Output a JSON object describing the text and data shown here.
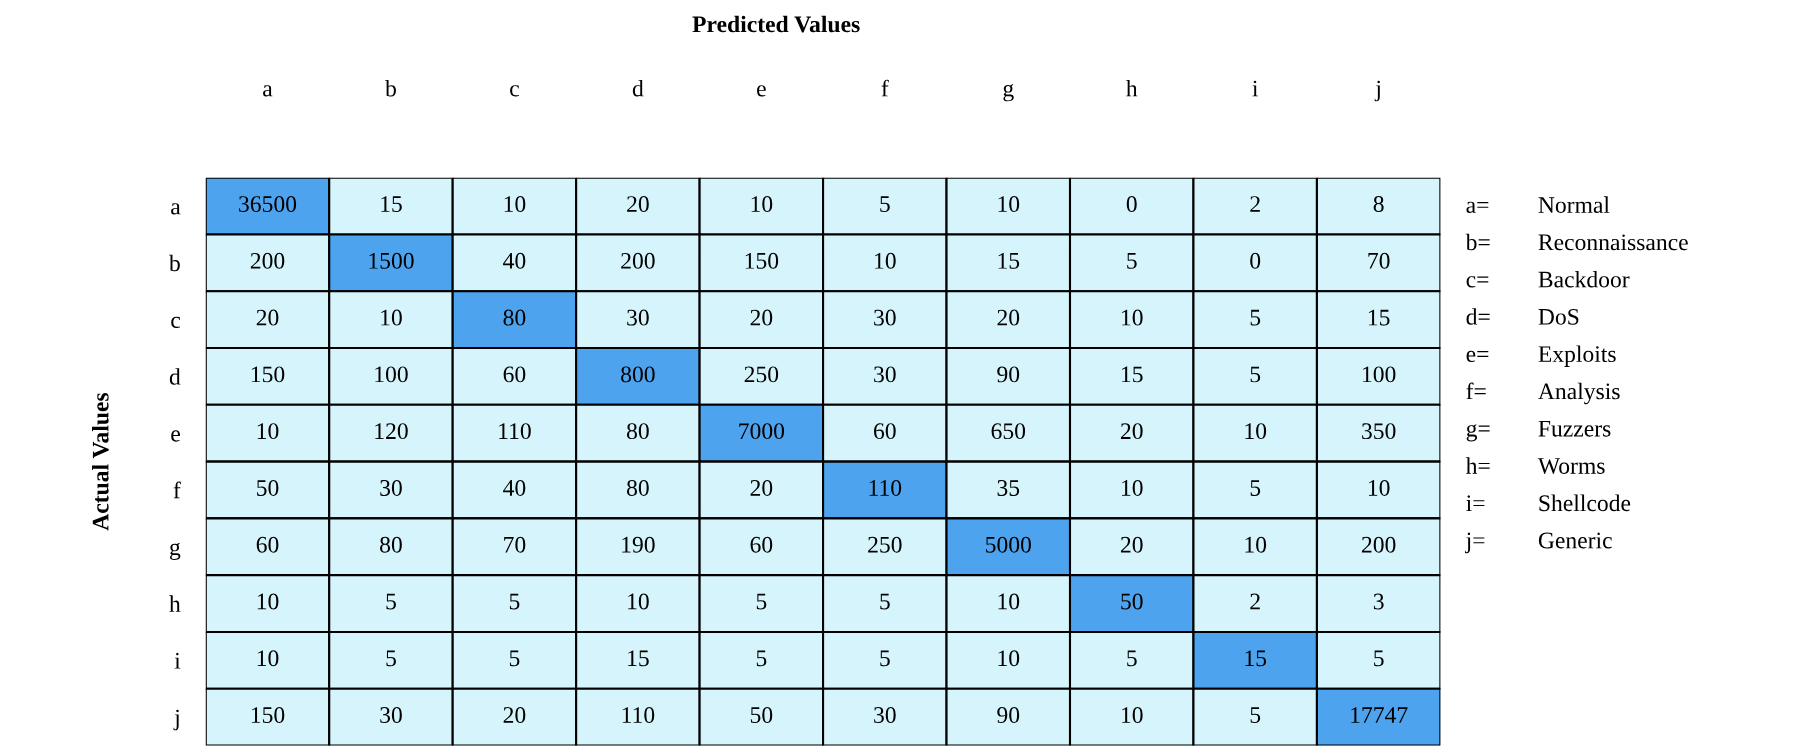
{
  "chart_data": {
    "type": "heatmap",
    "title": "Predicted Values",
    "ylabel": "Actual Values",
    "categories": [
      "a",
      "b",
      "c",
      "d",
      "e",
      "f",
      "g",
      "h",
      "i",
      "j"
    ],
    "y_categories": [
      "a",
      "b",
      "c",
      "d",
      "e",
      "f",
      "g",
      "h",
      "i",
      "j"
    ],
    "cells": [
      [
        36500,
        15,
        10,
        20,
        10,
        5,
        10,
        0,
        2,
        8
      ],
      [
        200,
        1500,
        40,
        200,
        150,
        10,
        15,
        5,
        0,
        70
      ],
      [
        20,
        10,
        80,
        30,
        20,
        30,
        20,
        10,
        5,
        15
      ],
      [
        150,
        100,
        60,
        800,
        250,
        30,
        90,
        15,
        5,
        100
      ],
      [
        10,
        120,
        110,
        80,
        7000,
        60,
        650,
        20,
        10,
        350
      ],
      [
        50,
        30,
        40,
        80,
        20,
        110,
        35,
        10,
        5,
        10
      ],
      [
        60,
        80,
        70,
        190,
        60,
        250,
        5000,
        20,
        10,
        200
      ],
      [
        10,
        5,
        5,
        10,
        5,
        5,
        10,
        50,
        2,
        3
      ],
      [
        10,
        5,
        5,
        15,
        5,
        5,
        10,
        5,
        15,
        5
      ],
      [
        150,
        30,
        20,
        110,
        50,
        30,
        90,
        10,
        5,
        17747
      ]
    ],
    "colors": [
      [
        "#4da3ee",
        "#d6f4fb",
        "#d6f4fb",
        "#d6f4fb",
        "#d6f4fb",
        "#d6f4fb",
        "#d6f4fb",
        "#d6f4fb",
        "#d6f4fb",
        "#d6f4fb"
      ],
      [
        "#d6f4fb",
        "#4da3ee",
        "#d6f4fb",
        "#d6f4fb",
        "#d6f4fb",
        "#d6f4fb",
        "#d6f4fb",
        "#d6f4fb",
        "#d6f4fb",
        "#d6f4fb"
      ],
      [
        "#d6f4fb",
        "#d6f4fb",
        "#4da3ee",
        "#d6f4fb",
        "#d6f4fb",
        "#d6f4fb",
        "#d6f4fb",
        "#d6f4fb",
        "#d6f4fb",
        "#d6f4fb"
      ],
      [
        "#d6f4fb",
        "#d6f4fb",
        "#d6f4fb",
        "#4da3ee",
        "#d6f4fb",
        "#d6f4fb",
        "#d6f4fb",
        "#d6f4fb",
        "#d6f4fb",
        "#d6f4fb"
      ],
      [
        "#d6f4fb",
        "#d6f4fb",
        "#d6f4fb",
        "#d6f4fb",
        "#4da3ee",
        "#d6f4fb",
        "#d6f4fb",
        "#d6f4fb",
        "#d6f4fb",
        "#d6f4fb"
      ],
      [
        "#d6f4fb",
        "#d6f4fb",
        "#d6f4fb",
        "#d6f4fb",
        "#d6f4fb",
        "#4da3ee",
        "#d6f4fb",
        "#d6f4fb",
        "#d6f4fb",
        "#d6f4fb"
      ],
      [
        "#d6f4fb",
        "#d6f4fb",
        "#d6f4fb",
        "#d6f4fb",
        "#d6f4fb",
        "#d6f4fb",
        "#4da3ee",
        "#d6f4fb",
        "#d6f4fb",
        "#d6f4fb"
      ],
      [
        "#d6f4fb",
        "#d6f4fb",
        "#d6f4fb",
        "#d6f4fb",
        "#d6f4fb",
        "#d6f4fb",
        "#d6f4fb",
        "#4da3ee",
        "#d6f4fb",
        "#d6f4fb"
      ],
      [
        "#d6f4fb",
        "#d6f4fb",
        "#d6f4fb",
        "#d6f4fb",
        "#d6f4fb",
        "#d6f4fb",
        "#d6f4fb",
        "#d6f4fb",
        "#4da3ee",
        "#d6f4fb"
      ],
      [
        "#d6f4fb",
        "#d6f4fb",
        "#d6f4fb",
        "#d6f4fb",
        "#d6f4fb",
        "#d6f4fb",
        "#d6f4fb",
        "#d6f4fb",
        "#d6f4fb",
        "#4da3ee"
      ]
    ],
    "data_labels": true,
    "annotations": [
      "a=",
      "Normal",
      "b=",
      "Reconnaissance",
      "c=",
      "Backdoor",
      "d=",
      "DoS",
      "e=",
      "Exploits",
      "f=",
      "Analysis",
      "g=",
      "Fuzzers",
      "h=",
      "Worms",
      "i=",
      "Shellcode",
      "j=",
      "Generic"
    ]
  }
}
